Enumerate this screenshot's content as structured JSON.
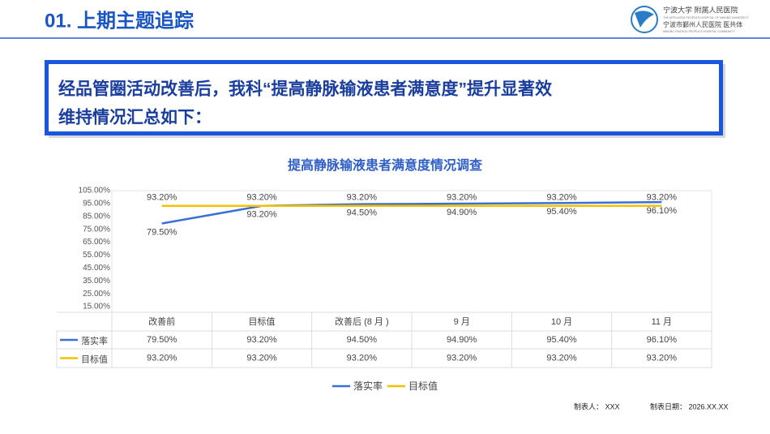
{
  "header": {
    "title": "01. 上期主题追踪",
    "logo": {
      "name_cn": "宁波大学 附属人民医院",
      "name_en": "THE AFFILIATED PEOPLE'S HOSPITAL OF NINGBO UNIVERSITY",
      "group_cn": "宁波市鄞州人民医院 医共体",
      "group_en": "NINGBO YINZHOU PEOPLE'S HOSPITAL COMMUNITY"
    }
  },
  "summary": {
    "lines": [
      "经品管圈活动改善后，我科“提高静脉输液患者满意度”提升显著效",
      "维持情况汇总如下："
    ]
  },
  "chart_data": {
    "type": "line",
    "title": "提高静脉输液患者满意度情况调查",
    "categories": [
      "改善前",
      "目标值",
      "改善后 (8 月 )",
      "9 月",
      "10 月",
      "11 月"
    ],
    "series": [
      {
        "name": "落实率",
        "color": "#3a6fd8",
        "values": [
          79.5,
          93.2,
          94.5,
          94.9,
          95.4,
          96.1
        ],
        "value_labels": [
          "79.50%",
          "93.20%",
          "94.50%",
          "94.90%",
          "95.40%",
          "96.10%"
        ]
      },
      {
        "name": "目标值",
        "color": "#f5c000",
        "values": [
          93.2,
          93.2,
          93.2,
          93.2,
          93.2,
          93.2
        ],
        "value_labels": [
          "93.20%",
          "93.20%",
          "93.20%",
          "93.20%",
          "93.20%",
          "93.20%"
        ]
      }
    ],
    "ylim": [
      15,
      105
    ],
    "yticks": [
      {
        "value": 15,
        "label": "15.00%"
      },
      {
        "value": 25,
        "label": "25.00%"
      },
      {
        "value": 35,
        "label": "35.00%"
      },
      {
        "value": 45,
        "label": "45.00%"
      },
      {
        "value": 55,
        "label": "55.00%"
      },
      {
        "value": 65,
        "label": "65.00%"
      },
      {
        "value": 75,
        "label": "75.00%"
      },
      {
        "value": 85,
        "label": "85.00%"
      },
      {
        "value": 95,
        "label": "95.00%"
      },
      {
        "value": 105,
        "label": "105.00%"
      }
    ],
    "legend": "bottom",
    "data_table": true
  },
  "footer": {
    "maker": "制表人： XXX",
    "date": "制表日期： 2026.XX.XX"
  }
}
